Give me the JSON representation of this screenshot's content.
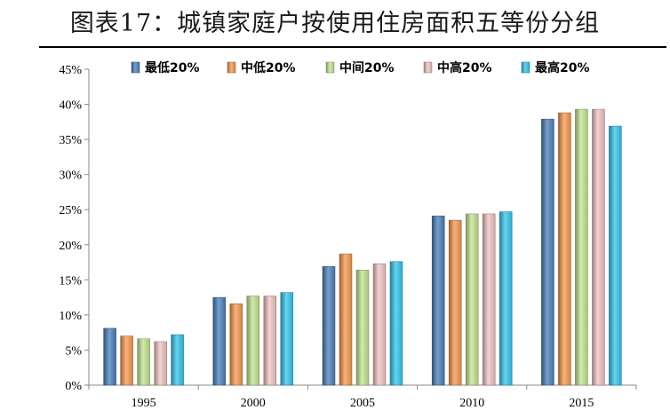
{
  "page": {
    "title": "图表17：城镇家庭户按使用住房面积五等份分组"
  },
  "chart_data": {
    "type": "bar",
    "title": "图表17：城镇家庭户按使用住房面积五等份分组",
    "xlabel": "",
    "ylabel": "",
    "categories": [
      "1995",
      "2000",
      "2005",
      "2010",
      "2015"
    ],
    "ylim": [
      0,
      45
    ],
    "yticks": [
      0,
      5,
      10,
      15,
      20,
      25,
      30,
      35,
      40,
      45
    ],
    "ytick_suffix": "%",
    "legend_position": "top",
    "grid": false,
    "series": [
      {
        "name": "最低20%",
        "color": "#4a7fbb",
        "values": [
          8.1,
          12.5,
          16.9,
          24.1,
          37.9
        ]
      },
      {
        "name": "中低20%",
        "color": "#f59a4e",
        "values": [
          7.0,
          11.6,
          18.7,
          23.5,
          38.8
        ]
      },
      {
        "name": "中间20%",
        "color": "#c2e490",
        "values": [
          6.6,
          12.7,
          16.4,
          24.4,
          39.3
        ]
      },
      {
        "name": "中高20%",
        "color": "#f0c4c4",
        "values": [
          6.2,
          12.7,
          17.3,
          24.4,
          39.3
        ]
      },
      {
        "name": "最高20%",
        "color": "#33c6ee",
        "values": [
          7.2,
          13.2,
          17.6,
          24.7,
          36.9
        ]
      }
    ]
  }
}
